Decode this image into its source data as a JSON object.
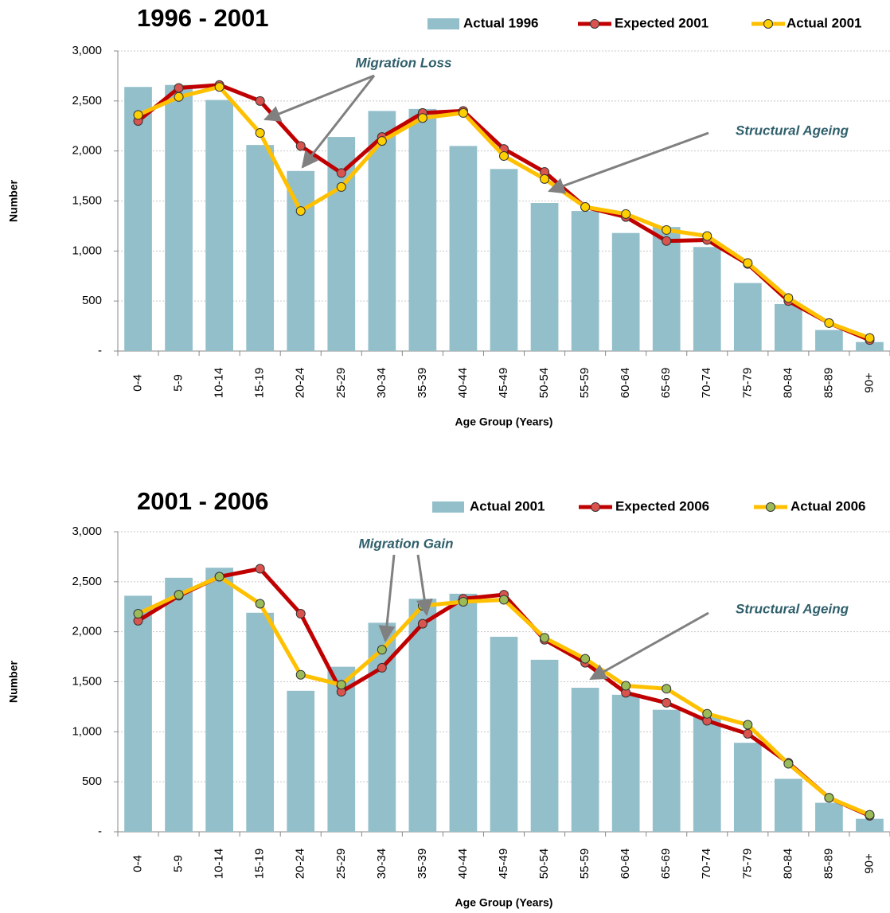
{
  "chart_data": [
    {
      "type": "combo",
      "title": "1996 - 2001",
      "x_label": "Age Group (Years)",
      "y_label": "Number",
      "categories": [
        "0-4",
        "5-9",
        "10-14",
        "15-19",
        "20-24",
        "25-29",
        "30-34",
        "35-39",
        "40-44",
        "45-49",
        "50-54",
        "55-59",
        "60-64",
        "65-69",
        "70-74",
        "75-79",
        "80-84",
        "85-89",
        "90+"
      ],
      "series": [
        {
          "name": "Actual 1996",
          "type": "bar",
          "color": "#93bfca",
          "values": [
            2640,
            2660,
            2510,
            2060,
            1800,
            2140,
            2400,
            2420,
            2050,
            1820,
            1480,
            1400,
            1180,
            1240,
            1040,
            680,
            470,
            210,
            90
          ]
        },
        {
          "name": "Expected 2001",
          "type": "line",
          "color": "#c00000",
          "marker_color": "#d9534f",
          "values": [
            2300,
            2630,
            2660,
            2500,
            2050,
            1780,
            2140,
            2380,
            2400,
            2020,
            1790,
            1440,
            1340,
            1100,
            1110,
            870,
            500,
            280,
            110
          ]
        },
        {
          "name": "Actual 2001",
          "type": "line",
          "color": "#ffc000",
          "marker_color": "#ffd000",
          "values": [
            2360,
            2540,
            2640,
            2180,
            1400,
            1640,
            2100,
            2330,
            2380,
            1950,
            1720,
            1440,
            1370,
            1210,
            1150,
            880,
            530,
            280,
            130
          ]
        }
      ],
      "ylim": [
        0,
        3000
      ],
      "yticks": [
        {
          "value": 0,
          "label": "-"
        },
        500,
        {
          "value": 1000,
          "label": "1,000"
        },
        {
          "value": 1500,
          "label": "1,500"
        },
        {
          "value": 2000,
          "label": "2,000"
        },
        {
          "value": 2500,
          "label": "2,500"
        },
        {
          "value": 3000,
          "label": "3,000"
        }
      ],
      "grid": true,
      "annotations": [
        "Migration Loss",
        "Structural Ageing"
      ]
    },
    {
      "type": "combo",
      "title": "2001 - 2006",
      "x_label": "Age Group (Years)",
      "y_label": "Number",
      "categories": [
        "0-4",
        "5-9",
        "10-14",
        "15-19",
        "20-24",
        "25-29",
        "30-34",
        "35-39",
        "40-44",
        "45-49",
        "50-54",
        "55-59",
        "60-64",
        "65-69",
        "70-74",
        "75-79",
        "80-84",
        "85-89",
        "90+"
      ],
      "series": [
        {
          "name": "Actual 2001",
          "type": "bar",
          "color": "#93bfca",
          "values": [
            2360,
            2540,
            2640,
            2190,
            1410,
            1650,
            2090,
            2330,
            2380,
            1950,
            1720,
            1440,
            1370,
            1220,
            1150,
            890,
            530,
            290,
            130
          ]
        },
        {
          "name": "Expected 2006",
          "type": "line",
          "color": "#c00000",
          "marker_color": "#d9534f",
          "values": [
            2110,
            2360,
            2550,
            2630,
            2180,
            1400,
            1640,
            2080,
            2330,
            2370,
            1920,
            1690,
            1390,
            1290,
            1110,
            980,
            690,
            340,
            160
          ]
        },
        {
          "name": "Actual  2006",
          "type": "line",
          "color": "#ffc000",
          "marker_color": "#9bbb59",
          "values": [
            2180,
            2370,
            2550,
            2280,
            1570,
            1470,
            1820,
            2260,
            2300,
            2320,
            1940,
            1730,
            1460,
            1430,
            1180,
            1070,
            680,
            340,
            170
          ]
        }
      ],
      "ylim": [
        0,
        3000
      ],
      "yticks": [
        {
          "value": 0,
          "label": "-"
        },
        500,
        {
          "value": 1000,
          "label": "1,000"
        },
        {
          "value": 1500,
          "label": "1,500"
        },
        {
          "value": 2000,
          "label": "2,000"
        },
        {
          "value": 2500,
          "label": "2,500"
        },
        {
          "value": 3000,
          "label": "3,000"
        }
      ],
      "grid": true,
      "annotations": [
        "Migration Gain",
        "Structural Ageing"
      ]
    }
  ]
}
